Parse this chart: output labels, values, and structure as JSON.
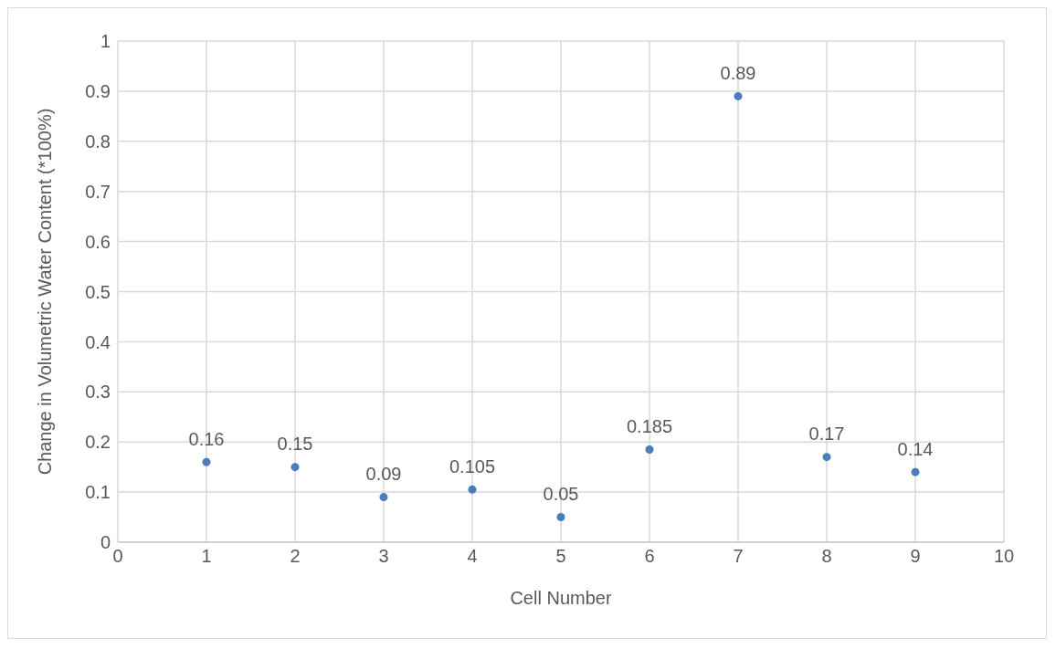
{
  "chart_data": {
    "type": "scatter",
    "xlabel": "Cell Number",
    "ylabel": "Change in Volumetric Water Content (*100%)",
    "x": [
      1,
      2,
      3,
      4,
      5,
      6,
      7,
      8,
      9
    ],
    "series": [
      {
        "color": "#4a7ebb",
        "values": [
          0.16,
          0.15,
          0.09,
          0.105,
          0.05,
          0.185,
          0.89,
          0.17,
          0.14
        ]
      }
    ],
    "xlim": [
      0,
      10
    ],
    "xticks": [
      0,
      1,
      2,
      3,
      4,
      5,
      6,
      7,
      8,
      9,
      10
    ],
    "ylim": [
      0,
      1
    ],
    "yticks": [
      0,
      0.1,
      0.2,
      0.3,
      0.4,
      0.5,
      0.6,
      0.7,
      0.8,
      0.9,
      1
    ],
    "grid": true,
    "marker": "circle",
    "data_labels": true,
    "legend": false
  }
}
